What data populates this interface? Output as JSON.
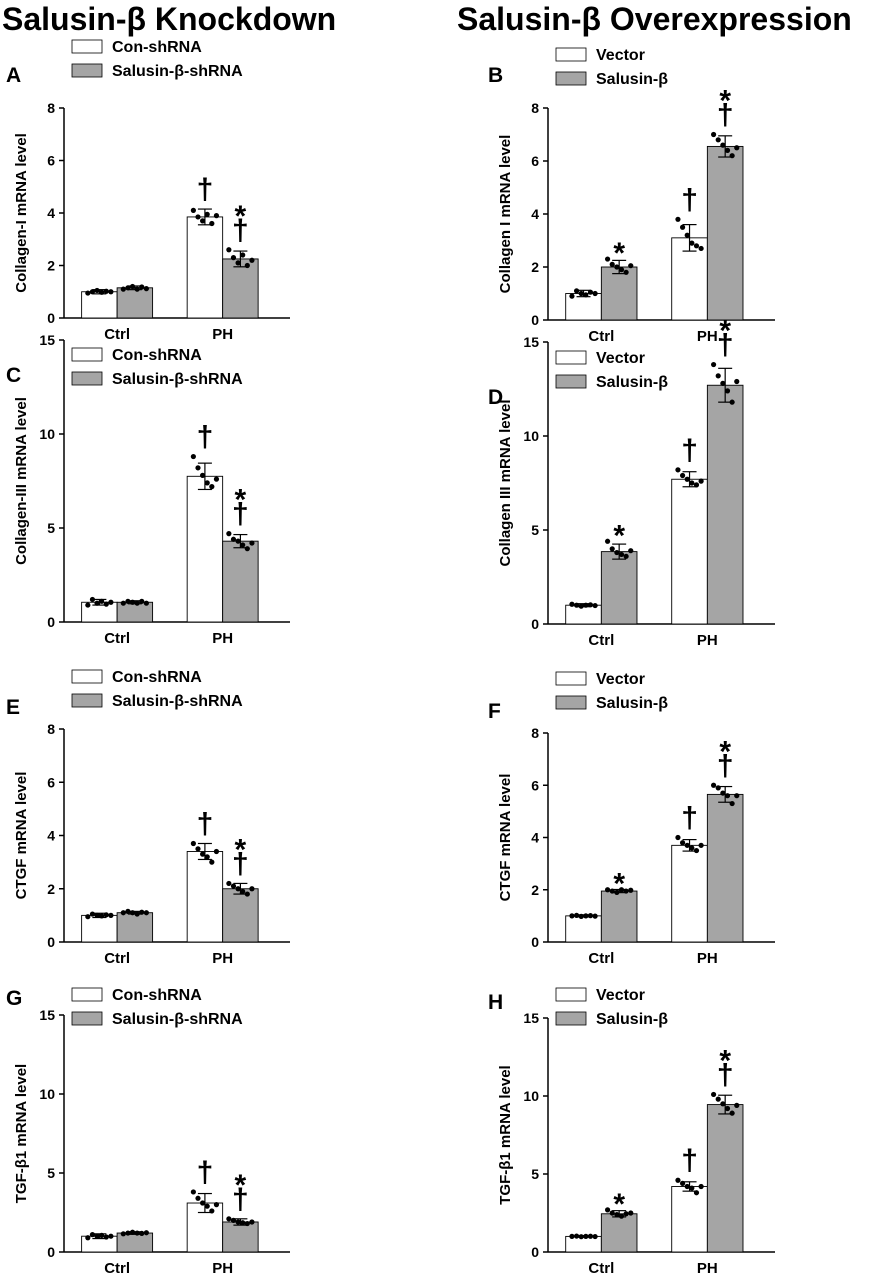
{
  "headers": {
    "left": "Salusin-β Knockdown",
    "right": "Salusin-β Overexpression"
  },
  "colors": {
    "bar1": "#ffffff",
    "bar2": "#a5a5a5",
    "axis": "#000000",
    "point": "#000000"
  },
  "chart_data": [
    {
      "type": "bar",
      "panel": "A",
      "ylabel": "Collagen-I mRNA  level",
      "ylim": [
        0,
        8
      ],
      "yticks": [
        0,
        2,
        4,
        6,
        8
      ],
      "categories": [
        "Ctrl",
        "PH"
      ],
      "series": [
        {
          "name": "Con-shRNA",
          "values": [
            1.0,
            3.85
          ],
          "sd": [
            0.08,
            0.3
          ],
          "points": [
            [
              0.95,
              1.0,
              1.05,
              0.98,
              1.02,
              1.0
            ],
            [
              4.1,
              3.85,
              3.7,
              3.95,
              3.6,
              3.9
            ]
          ],
          "marks": [
            "",
            "†"
          ]
        },
        {
          "name": "Salusin-β-shRNA",
          "values": [
            1.15,
            2.25
          ],
          "sd": [
            0.07,
            0.3
          ],
          "points": [
            [
              1.1,
              1.15,
              1.2,
              1.1,
              1.18,
              1.12
            ],
            [
              2.6,
              2.3,
              2.1,
              2.4,
              2.0,
              2.2
            ]
          ],
          "marks": [
            "",
            "*†"
          ]
        }
      ]
    },
    {
      "type": "bar",
      "panel": "B",
      "ylabel": "Collagen I mRNA  level",
      "ylim": [
        0,
        8
      ],
      "yticks": [
        0,
        2,
        4,
        6,
        8
      ],
      "categories": [
        "Ctrl",
        "PH"
      ],
      "series": [
        {
          "name": "Vector",
          "values": [
            1.0,
            3.1
          ],
          "sd": [
            0.12,
            0.5
          ],
          "points": [
            [
              0.9,
              1.1,
              1.0,
              0.95,
              1.05,
              1.0
            ],
            [
              3.8,
              3.5,
              3.2,
              2.9,
              2.8,
              2.7
            ]
          ],
          "marks": [
            "",
            "†"
          ]
        },
        {
          "name": "Salusin-β",
          "values": [
            2.0,
            6.55
          ],
          "sd": [
            0.25,
            0.4
          ],
          "points": [
            [
              2.3,
              2.1,
              2.0,
              1.9,
              1.8,
              2.05
            ],
            [
              7.0,
              6.8,
              6.6,
              6.4,
              6.2,
              6.5
            ]
          ],
          "marks": [
            "*",
            "*†"
          ]
        }
      ]
    },
    {
      "type": "bar",
      "panel": "C",
      "ylabel": "Collagen-III mRNA  level",
      "ylim": [
        0,
        15
      ],
      "yticks": [
        0,
        5,
        10,
        15
      ],
      "categories": [
        "Ctrl",
        "PH"
      ],
      "series": [
        {
          "name": "Con-shRNA",
          "values": [
            1.05,
            7.75
          ],
          "sd": [
            0.15,
            0.7
          ],
          "points": [
            [
              0.9,
              1.2,
              1.0,
              1.1,
              0.95,
              1.05
            ],
            [
              8.8,
              8.2,
              7.8,
              7.4,
              7.2,
              7.6
            ]
          ],
          "marks": [
            "",
            "†"
          ]
        },
        {
          "name": "Salusin-β-shRNA",
          "values": [
            1.05,
            4.3
          ],
          "sd": [
            0.08,
            0.35
          ],
          "points": [
            [
              1.0,
              1.1,
              1.05,
              1.0,
              1.1,
              1.0
            ],
            [
              4.7,
              4.4,
              4.3,
              4.1,
              3.9,
              4.2
            ]
          ],
          "marks": [
            "",
            "*†"
          ]
        }
      ]
    },
    {
      "type": "bar",
      "panel": "D",
      "ylabel": "Collagen III mRNA  level",
      "ylim": [
        0,
        15
      ],
      "yticks": [
        0,
        5,
        10,
        15
      ],
      "categories": [
        "Ctrl",
        "PH"
      ],
      "series": [
        {
          "name": "Vector",
          "values": [
            1.0,
            7.7
          ],
          "sd": [
            0.08,
            0.4
          ],
          "points": [
            [
              1.05,
              1.0,
              0.95,
              1.0,
              1.02,
              0.98
            ],
            [
              8.2,
              7.9,
              7.7,
              7.5,
              7.4,
              7.6
            ]
          ],
          "marks": [
            "",
            "†"
          ]
        },
        {
          "name": "Salusin-β",
          "values": [
            3.85,
            12.7
          ],
          "sd": [
            0.4,
            0.9
          ],
          "points": [
            [
              4.4,
              4.0,
              3.8,
              3.7,
              3.6,
              3.9
            ],
            [
              13.8,
              13.2,
              12.8,
              12.4,
              11.8,
              12.9
            ]
          ],
          "marks": [
            "*",
            "*†"
          ]
        }
      ]
    },
    {
      "type": "bar",
      "panel": "E",
      "ylabel": "CTGF mRNA  level",
      "ylim": [
        0,
        8
      ],
      "yticks": [
        0,
        2,
        4,
        6,
        8
      ],
      "categories": [
        "Ctrl",
        "PH"
      ],
      "series": [
        {
          "name": "Con-shRNA",
          "values": [
            1.0,
            3.4
          ],
          "sd": [
            0.08,
            0.3
          ],
          "points": [
            [
              0.95,
              1.05,
              1.0,
              0.98,
              1.02,
              1.0
            ],
            [
              3.7,
              3.5,
              3.3,
              3.2,
              3.0,
              3.4
            ]
          ],
          "marks": [
            "",
            "†"
          ]
        },
        {
          "name": "Salusin-β-shRNA",
          "values": [
            1.1,
            2.0
          ],
          "sd": [
            0.05,
            0.2
          ],
          "points": [
            [
              1.1,
              1.15,
              1.1,
              1.05,
              1.12,
              1.1
            ],
            [
              2.2,
              2.1,
              2.0,
              1.9,
              1.8,
              2.0
            ]
          ],
          "marks": [
            "",
            "*†"
          ]
        }
      ]
    },
    {
      "type": "bar",
      "panel": "F",
      "ylabel": "CTGF mRNA  level",
      "ylim": [
        0,
        8
      ],
      "yticks": [
        0,
        2,
        4,
        6,
        8
      ],
      "categories": [
        "Ctrl",
        "PH"
      ],
      "series": [
        {
          "name": "Vector",
          "values": [
            1.0,
            3.7
          ],
          "sd": [
            0.04,
            0.22
          ],
          "points": [
            [
              1.0,
              1.02,
              0.98,
              1.0,
              1.01,
              0.99
            ],
            [
              4.0,
              3.8,
              3.7,
              3.6,
              3.5,
              3.7
            ]
          ],
          "marks": [
            "",
            "†"
          ]
        },
        {
          "name": "Salusin-β",
          "values": [
            1.95,
            5.65
          ],
          "sd": [
            0.06,
            0.3
          ],
          "points": [
            [
              2.0,
              1.95,
              1.9,
              2.0,
              1.95,
              1.98
            ],
            [
              6.0,
              5.9,
              5.7,
              5.6,
              5.3,
              5.6
            ]
          ],
          "marks": [
            "*",
            "*†"
          ]
        }
      ]
    },
    {
      "type": "bar",
      "panel": "G",
      "ylabel": "TGF-β1 mRNA  level",
      "ylim": [
        0,
        15
      ],
      "yticks": [
        0,
        5,
        10,
        15
      ],
      "categories": [
        "Ctrl",
        "PH"
      ],
      "series": [
        {
          "name": "Con-shRNA",
          "values": [
            1.0,
            3.1
          ],
          "sd": [
            0.15,
            0.6
          ],
          "points": [
            [
              0.9,
              1.1,
              1.0,
              1.05,
              0.95,
              1.0
            ],
            [
              3.8,
              3.4,
              3.1,
              2.9,
              2.6,
              3.0
            ]
          ],
          "marks": [
            "",
            "†"
          ]
        },
        {
          "name": "Salusin-β-shRNA",
          "values": [
            1.2,
            1.9
          ],
          "sd": [
            0.08,
            0.2
          ],
          "points": [
            [
              1.15,
              1.2,
              1.25,
              1.2,
              1.18,
              1.22
            ],
            [
              2.1,
              2.0,
              1.9,
              1.85,
              1.8,
              1.9
            ]
          ],
          "marks": [
            "",
            "*†"
          ]
        }
      ]
    },
    {
      "type": "bar",
      "panel": "H",
      "ylabel": "TGF-β1 mRNA  level",
      "ylim": [
        0,
        15
      ],
      "yticks": [
        0,
        5,
        10,
        15
      ],
      "categories": [
        "Ctrl",
        "PH"
      ],
      "series": [
        {
          "name": "Vector",
          "values": [
            1.0,
            4.2
          ],
          "sd": [
            0.05,
            0.3
          ],
          "points": [
            [
              1.0,
              1.02,
              0.98,
              1.0,
              1.01,
              0.99
            ],
            [
              4.6,
              4.4,
              4.2,
              4.1,
              3.8,
              4.2
            ]
          ],
          "marks": [
            "",
            "†"
          ]
        },
        {
          "name": "Salusin-β",
          "values": [
            2.45,
            9.45
          ],
          "sd": [
            0.2,
            0.6
          ],
          "points": [
            [
              2.7,
              2.5,
              2.4,
              2.3,
              2.45,
              2.5
            ],
            [
              10.1,
              9.8,
              9.5,
              9.2,
              8.9,
              9.4
            ]
          ],
          "marks": [
            "*",
            "*†"
          ]
        }
      ]
    }
  ]
}
